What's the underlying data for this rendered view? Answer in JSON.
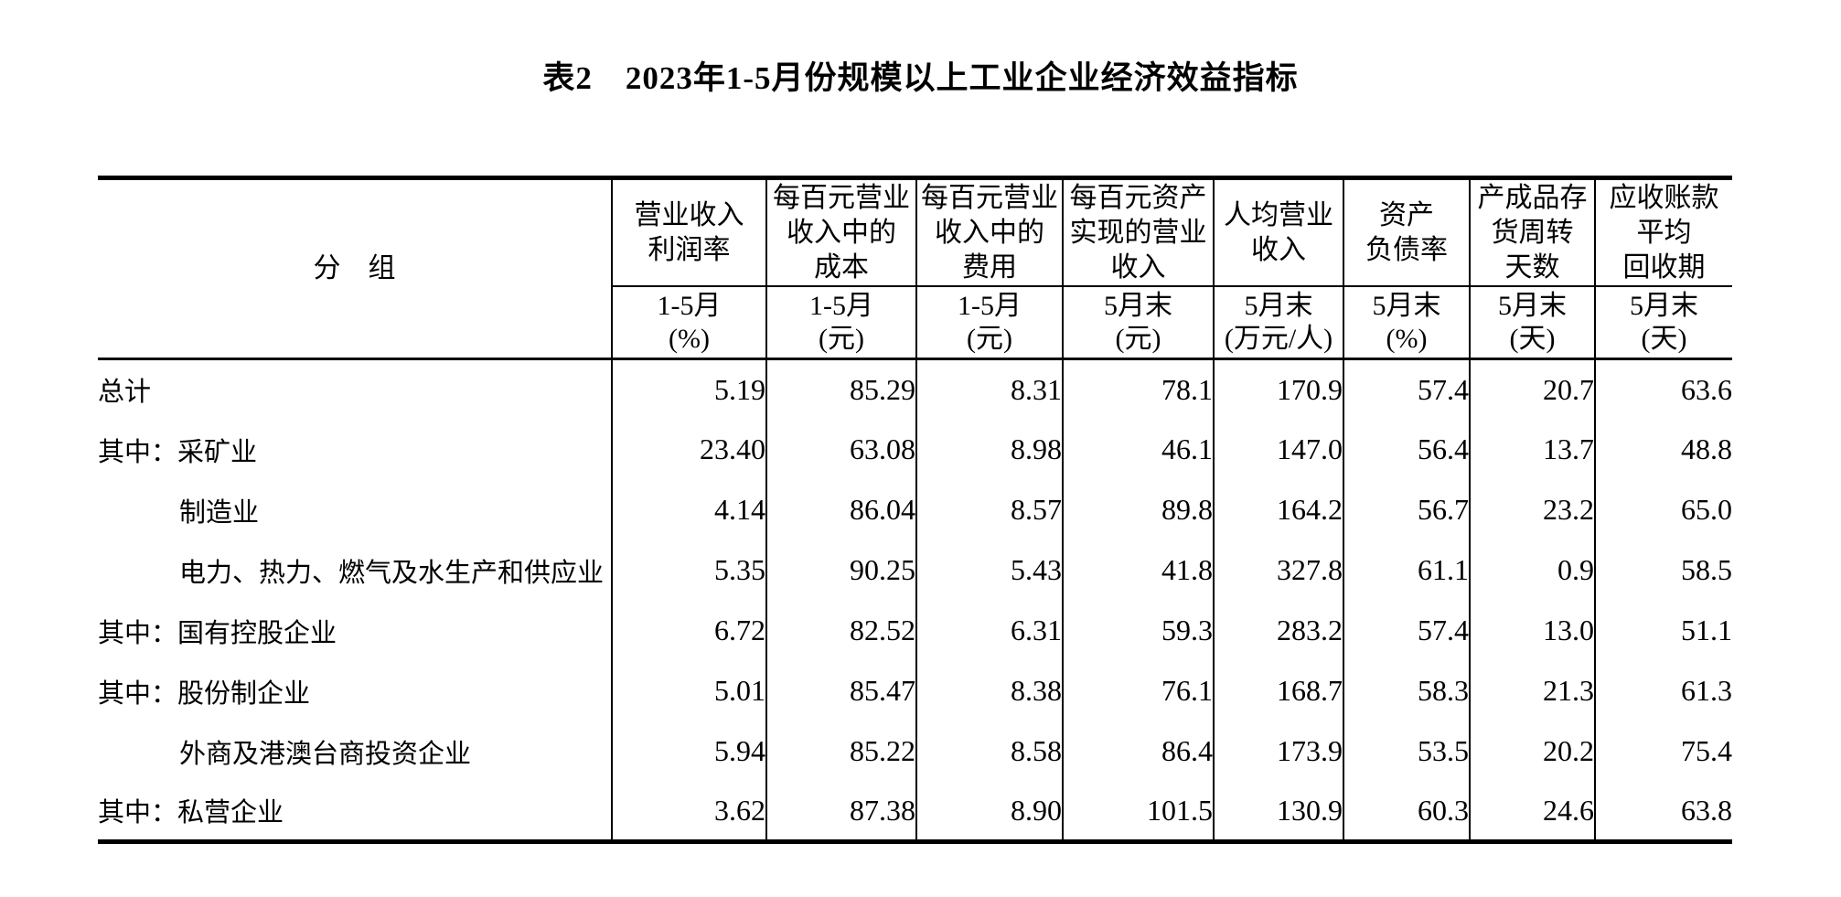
{
  "page": {
    "title": "表2　2023年1-5月份规模以上工业企业经济效益指标"
  },
  "table": {
    "group_header": "分　组",
    "columns": [
      {
        "title_lines": [
          "营业收入",
          "利润率"
        ],
        "period": "1-5月",
        "unit": "(%)"
      },
      {
        "title_lines": [
          "每百元营业",
          "收入中的",
          "成本"
        ],
        "period": "1-5月",
        "unit": "(元)"
      },
      {
        "title_lines": [
          "每百元营业",
          "收入中的",
          "费用"
        ],
        "period": "1-5月",
        "unit": "(元)"
      },
      {
        "title_lines": [
          "每百元资产",
          "实现的营业",
          "收入"
        ],
        "period": "5月末",
        "unit": "(元)"
      },
      {
        "title_lines": [
          "人均营业",
          "收入"
        ],
        "period": "5月末",
        "unit": "(万元/人)"
      },
      {
        "title_lines": [
          "资产",
          "负债率"
        ],
        "period": "5月末",
        "unit": "(%)"
      },
      {
        "title_lines": [
          "产成品存",
          "货周转",
          "天数"
        ],
        "period": "5月末",
        "unit": "(天)"
      },
      {
        "title_lines": [
          "应收账款",
          "平均",
          "回收期"
        ],
        "period": "5月末",
        "unit": "(天)"
      }
    ],
    "rows": [
      {
        "label": "总计",
        "indent": false,
        "values": [
          "5.19",
          "85.29",
          "8.31",
          "78.1",
          "170.9",
          "57.4",
          "20.7",
          "63.6"
        ]
      },
      {
        "label": "其中：采矿业",
        "indent": false,
        "values": [
          "23.40",
          "63.08",
          "8.98",
          "46.1",
          "147.0",
          "56.4",
          "13.7",
          "48.8"
        ]
      },
      {
        "label": "制造业",
        "indent": true,
        "values": [
          "4.14",
          "86.04",
          "8.57",
          "89.8",
          "164.2",
          "56.7",
          "23.2",
          "65.0"
        ]
      },
      {
        "label": "电力、热力、燃气及水生产和供应业",
        "indent": true,
        "values": [
          "5.35",
          "90.25",
          "5.43",
          "41.8",
          "327.8",
          "61.1",
          "0.9",
          "58.5"
        ]
      },
      {
        "label": "其中：国有控股企业",
        "indent": false,
        "values": [
          "6.72",
          "82.52",
          "6.31",
          "59.3",
          "283.2",
          "57.4",
          "13.0",
          "51.1"
        ]
      },
      {
        "label": "其中：股份制企业",
        "indent": false,
        "values": [
          "5.01",
          "85.47",
          "8.38",
          "76.1",
          "168.7",
          "58.3",
          "21.3",
          "61.3"
        ]
      },
      {
        "label": "外商及港澳台商投资企业",
        "indent": true,
        "values": [
          "5.94",
          "85.22",
          "8.58",
          "86.4",
          "173.9",
          "53.5",
          "20.2",
          "75.4"
        ]
      },
      {
        "label": "其中：私营企业",
        "indent": false,
        "values": [
          "3.62",
          "87.38",
          "8.90",
          "101.5",
          "130.9",
          "60.3",
          "24.6",
          "63.8"
        ]
      }
    ]
  }
}
